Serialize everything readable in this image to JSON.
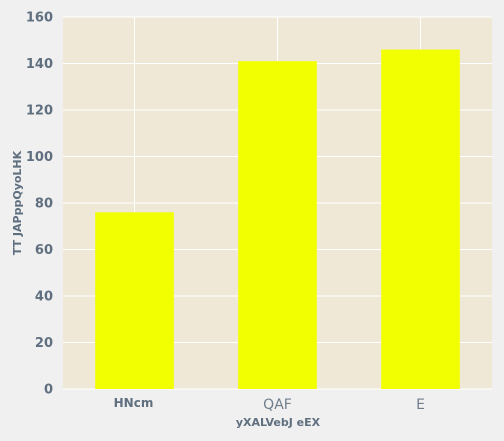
{
  "chart_data": {
    "type": "bar",
    "categories": [
      "HNcm",
      "QAF",
      "E"
    ],
    "values": [
      76,
      141,
      146
    ],
    "title": "",
    "xlabel": "yXALVebJ eEX",
    "ylabel": "TT JAPppQyoLHK",
    "ylim": [
      0,
      160
    ],
    "yticks": [
      0,
      20,
      40,
      60,
      80,
      100,
      120,
      140,
      160
    ],
    "grid": true,
    "colors": {
      "bar": "#f2ff00",
      "plot_background": "#efe8d7",
      "page_background": "#f0f0f0",
      "grid": "#ffffff"
    }
  }
}
